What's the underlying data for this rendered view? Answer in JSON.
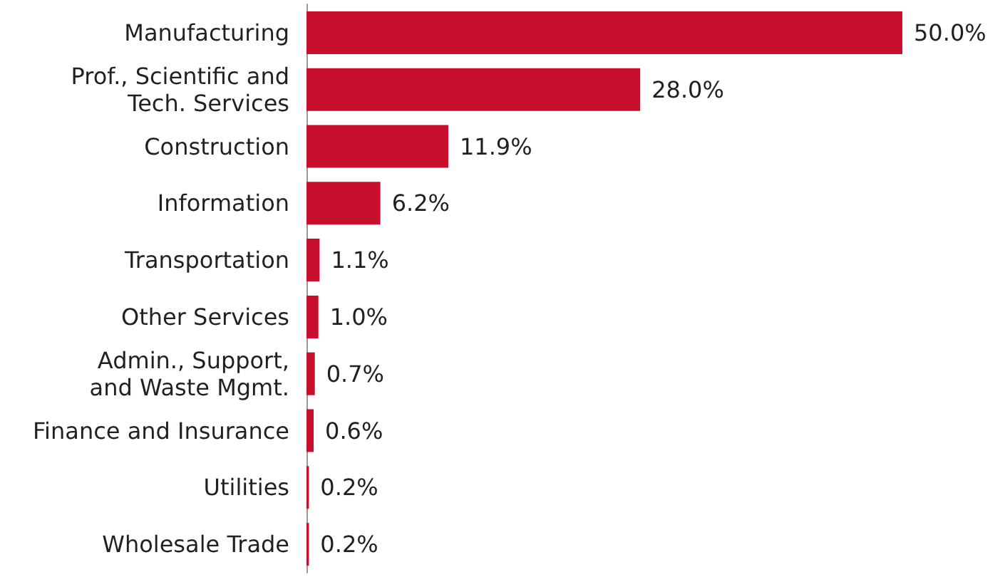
{
  "chart_data": {
    "type": "bar",
    "orientation": "horizontal",
    "categories": [
      "Manufacturing",
      "Prof., Scientific and\nTech. Services",
      "Construction",
      "Information",
      "Transportation",
      "Other Services",
      "Admin., Support,\nand Waste Mgmt.",
      "Finance and Insurance",
      "Utilities",
      "Wholesale Trade"
    ],
    "values": [
      50.0,
      28.0,
      11.9,
      6.2,
      1.1,
      1.0,
      0.7,
      0.6,
      0.2,
      0.2
    ],
    "value_labels": [
      "50.0%",
      "28.0%",
      "11.9%",
      "6.2%",
      "1.1%",
      "1.0%",
      "0.7%",
      "0.6%",
      "0.2%",
      "0.2%"
    ],
    "color": "#c8102e"
  }
}
